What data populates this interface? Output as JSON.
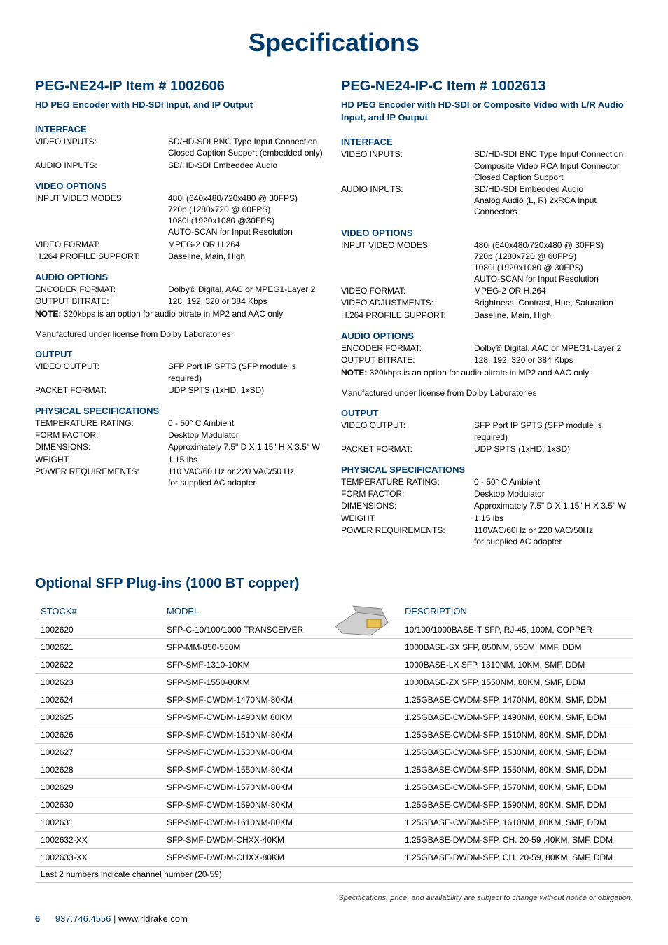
{
  "title": "Specifications",
  "left": {
    "header": "PEG-NE24-IP    Item # 1002606",
    "sub": "HD PEG Encoder with HD-SDI Input, and IP Output",
    "sections": [
      {
        "head": "INTERFACE",
        "rows": [
          {
            "k": "VIDEO INPUTS:",
            "v": "SD/HD-SDI BNC Type Input Connection\nClosed Caption Support (embedded only)"
          },
          {
            "k": "AUDIO INPUTS:",
            "v": "SD/HD-SDI Embedded Audio"
          }
        ]
      },
      {
        "head": "VIDEO OPTIONS",
        "rows": [
          {
            "k": "INPUT VIDEO MODES:",
            "v": "480i (640x480/720x480 @ 30FPS)\n720p (1280x720 @ 60FPS)\n1080i (1920x1080 @30FPS)\nAUTO-SCAN for Input Resolution"
          },
          {
            "k": "VIDEO FORMAT:",
            "v": "MPEG-2 OR H.264"
          },
          {
            "k": "H.264 PROFILE SUPPORT:",
            "v": "Baseline, Main, High"
          }
        ]
      },
      {
        "head": "AUDIO OPTIONS",
        "rows": [
          {
            "k": "ENCODER FORMAT:",
            "v": "Dolby® Digital, AAC or MPEG1-Layer 2"
          },
          {
            "k": "OUTPUT BITRATE:",
            "v": "128, 192, 320 or 384 Kbps"
          }
        ],
        "note": "320kbps is an option for audio bitrate in MP2 and AAC only",
        "after": "Manufactured under license from Dolby Laboratories"
      },
      {
        "head": "OUTPUT",
        "rows": [
          {
            "k": "VIDEO OUTPUT:",
            "v": "SFP Port IP SPTS (SFP module is required)"
          },
          {
            "k": "PACKET FORMAT:",
            "v": "UDP SPTS (1xHD, 1xSD)"
          }
        ]
      },
      {
        "head": "PHYSICAL SPECIFICATIONS",
        "rows": [
          {
            "k": "TEMPERATURE RATING:",
            "v": "0 - 50° C Ambient"
          },
          {
            "k": "FORM FACTOR:",
            "v": "Desktop Modulator"
          },
          {
            "k": "DIMENSIONS:",
            "v": "Approximately 7.5\" D X 1.15\" H X 3.5\" W"
          },
          {
            "k": "WEIGHT:",
            "v": "1.15 lbs"
          },
          {
            "k": "POWER REQUIREMENTS:",
            "v": "110 VAC/60 Hz or 220 VAC/50 Hz\nfor supplied AC adapter"
          }
        ]
      }
    ]
  },
  "right": {
    "header": "PEG-NE24-IP-C    Item # 1002613",
    "sub": "HD PEG Encoder with HD-SDI or Composite Video with L/R Audio Input, and IP Output",
    "sections": [
      {
        "head": "INTERFACE",
        "rows": [
          {
            "k": "VIDEO INPUTS:",
            "v": "SD/HD-SDI BNC Type Input Connection\nComposite Video RCA Input Connector\nClosed Caption Support"
          },
          {
            "k": "AUDIO INPUTS:",
            "v": "SD/HD-SDI Embedded Audio\nAnalog Audio (L, R) 2xRCA Input Connectors"
          }
        ]
      },
      {
        "head": "VIDEO OPTIONS",
        "rows": [
          {
            "k": "INPUT VIDEO MODES:",
            "v": "480i (640x480/720x480 @ 30FPS)\n720p (1280x720 @ 60FPS)\n1080i (1920x1080 @ 30FPS)\nAUTO-SCAN for Input Resolution"
          },
          {
            "k": "VIDEO FORMAT:",
            "v": "MPEG-2 OR H.264"
          },
          {
            "k": "VIDEO ADJUSTMENTS:",
            "v": "Brightness, Contrast, Hue, Saturation"
          },
          {
            "k": "H.264 PROFILE SUPPORT:",
            "v": "Baseline, Main, High"
          }
        ]
      },
      {
        "head": "AUDIO OPTIONS",
        "rows": [
          {
            "k": "ENCODER FORMAT:",
            "v": "Dolby® Digital, AAC or MPEG1-Layer 2"
          },
          {
            "k": "OUTPUT BITRATE:",
            "v": "128, 192, 320 or 384 Kbps"
          }
        ],
        "note": "320kbps is an option for audio bitrate in MP2 and AAC only'",
        "after": "Manufactured under license from Dolby Laboratories"
      },
      {
        "head": "OUTPUT",
        "rows": [
          {
            "k": "VIDEO OUTPUT:",
            "v": "SFP Port IP SPTS (SFP module is required)"
          },
          {
            "k": "PACKET FORMAT:",
            "v": "UDP SPTS (1xHD, 1xSD)"
          }
        ]
      },
      {
        "head": "PHYSICAL SPECIFICATIONS",
        "rows": [
          {
            "k": "TEMPERATURE RATING:",
            "v": "0 - 50° C Ambient"
          },
          {
            "k": "FORM FACTOR:",
            "v": "Desktop Modulator"
          },
          {
            "k": "DIMENSIONS:",
            "v": "Approximately 7.5\" D X 1.15\" H X 3.5\" W"
          },
          {
            "k": "WEIGHT:",
            "v": "1.15 lbs"
          },
          {
            "k": "POWER REQUIREMENTS:",
            "v": "110VAC/60Hz or 220 VAC/50Hz\nfor supplied AC adapter"
          }
        ]
      }
    ]
  },
  "sfp": {
    "title": "Optional SFP Plug-ins (1000 BT copper)",
    "headers": {
      "stock": "STOCK#",
      "model": "MODEL",
      "desc": "DESCRIPTION"
    },
    "rows": [
      {
        "s": "1002620",
        "m": "SFP-C-10/100/1000 TRANSCEIVER",
        "d": "10/100/1000BASE-T SFP, RJ-45, 100M, COPPER"
      },
      {
        "s": "1002621",
        "m": "SFP-MM-850-550M",
        "d": "1000BASE-SX SFP, 850NM, 550M, MMF, DDM"
      },
      {
        "s": "1002622",
        "m": "SFP-SMF-1310-10KM",
        "d": "1000BASE-LX SFP, 1310NM, 10KM, SMF, DDM"
      },
      {
        "s": "1002623",
        "m": "SFP-SMF-1550-80KM",
        "d": "1000BASE-ZX SFP, 1550NM, 80KM, SMF, DDM"
      },
      {
        "s": "1002624",
        "m": "SFP-SMF-CWDM-1470NM-80KM",
        "d": "1.25GBASE-CWDM-SFP, 1470NM, 80KM, SMF, DDM"
      },
      {
        "s": "1002625",
        "m": "SFP-SMF-CWDM-1490NM 80KM",
        "d": "1.25GBASE-CWDM-SFP, 1490NM, 80KM, SMF, DDM"
      },
      {
        "s": "1002626",
        "m": "SFP-SMF-CWDM-1510NM-80KM",
        "d": "1.25GBASE-CWDM-SFP, 1510NM, 80KM, SMF, DDM"
      },
      {
        "s": "1002627",
        "m": "SFP-SMF-CWDM-1530NM-80KM",
        "d": "1.25GBASE-CWDM-SFP, 1530NM, 80KM, SMF, DDM"
      },
      {
        "s": "1002628",
        "m": "SFP-SMF-CWDM-1550NM-80KM",
        "d": "1.25GBASE-CWDM-SFP, 1550NM, 80KM, SMF, DDM"
      },
      {
        "s": "1002629",
        "m": "SFP-SMF-CWDM-1570NM-80KM",
        "d": "1.25GBASE-CWDM-SFP, 1570NM, 80KM, SMF, DDM"
      },
      {
        "s": "1002630",
        "m": "SFP-SMF-CWDM-1590NM-80KM",
        "d": "1.25GBASE-CWDM-SFP, 1590NM, 80KM, SMF, DDM"
      },
      {
        "s": "1002631",
        "m": "SFP-SMF-CWDM-1610NM-80KM",
        "d": "1.25GBASE-CWDM-SFP, 1610NM, 80KM, SMF, DDM"
      },
      {
        "s": "1002632-XX",
        "m": "SFP-SMF-DWDM-CHXX-40KM",
        "d": "1.25GBASE-DWDM-SFP, CH. 20-59 ,40KM, SMF, DDM"
      },
      {
        "s": "1002633-XX",
        "m": "SFP-SMF-DWDM-CHXX-80KM",
        "d": "1.25GBASE-DWDM-SFP, CH. 20-59, 80KM, SMF, DDM"
      }
    ],
    "footer": "Last 2 numbers indicate channel number (20-59)."
  },
  "disclaimer": "Specifications, price, and availability are subject to change without notice or obligation.",
  "footer": {
    "page": "6",
    "phone": "937.746.4556 | ",
    "url": "www.rldrake.com"
  },
  "note_prefix": "NOTE: "
}
